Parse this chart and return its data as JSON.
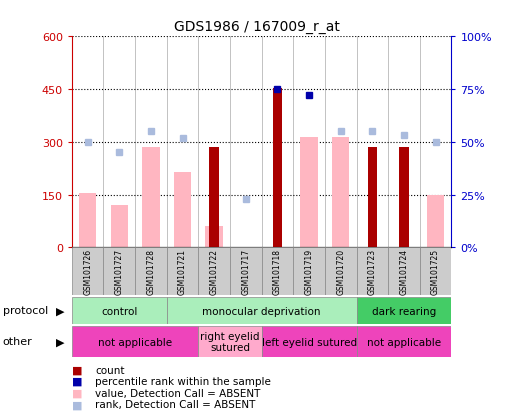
{
  "title": "GDS1986 / 167009_r_at",
  "samples": [
    "GSM101726",
    "GSM101727",
    "GSM101728",
    "GSM101721",
    "GSM101722",
    "GSM101717",
    "GSM101718",
    "GSM101719",
    "GSM101720",
    "GSM101723",
    "GSM101724",
    "GSM101725"
  ],
  "count_values": [
    null,
    null,
    null,
    null,
    285,
    null,
    452,
    null,
    null,
    285,
    285,
    null
  ],
  "rank_pct": [
    null,
    null,
    null,
    null,
    null,
    null,
    75,
    72,
    null,
    null,
    null,
    null
  ],
  "absent_value_bars": [
    155,
    120,
    285,
    215,
    60,
    null,
    null,
    315,
    315,
    null,
    null,
    148
  ],
  "absent_rank_pct": [
    50,
    45,
    55,
    52,
    null,
    23,
    null,
    null,
    55,
    55,
    53,
    50
  ],
  "left_ylim": [
    0,
    600
  ],
  "right_ylim": [
    0,
    100
  ],
  "left_yticks": [
    0,
    150,
    300,
    450,
    600
  ],
  "right_yticks": [
    0,
    25,
    50,
    75,
    100
  ],
  "right_yticklabels": [
    "0%",
    "25%",
    "50%",
    "75%",
    "100%"
  ],
  "protocol_groups": [
    {
      "label": "control",
      "start": 0,
      "end": 3,
      "color": "#AAEEBB"
    },
    {
      "label": "monocular deprivation",
      "start": 3,
      "end": 9,
      "color": "#AAEEBB"
    },
    {
      "label": "dark rearing",
      "start": 9,
      "end": 12,
      "color": "#44CC66"
    }
  ],
  "other_groups": [
    {
      "label": "not applicable",
      "start": 0,
      "end": 4,
      "color": "#EE44BB"
    },
    {
      "label": "right eyelid\nsutured",
      "start": 4,
      "end": 6,
      "color": "#FFAACC"
    },
    {
      "label": "left eyelid sutured",
      "start": 6,
      "end": 9,
      "color": "#EE44BB"
    },
    {
      "label": "not applicable",
      "start": 9,
      "end": 12,
      "color": "#EE44BB"
    }
  ],
  "color_count": "#AA0000",
  "color_rank": "#0000AA",
  "color_absent_value": "#FFB6C1",
  "color_absent_rank": "#AABBDD",
  "left_axis_color": "#CC0000",
  "right_axis_color": "#0000CC",
  "cell_bg_color": "#CCCCCC"
}
